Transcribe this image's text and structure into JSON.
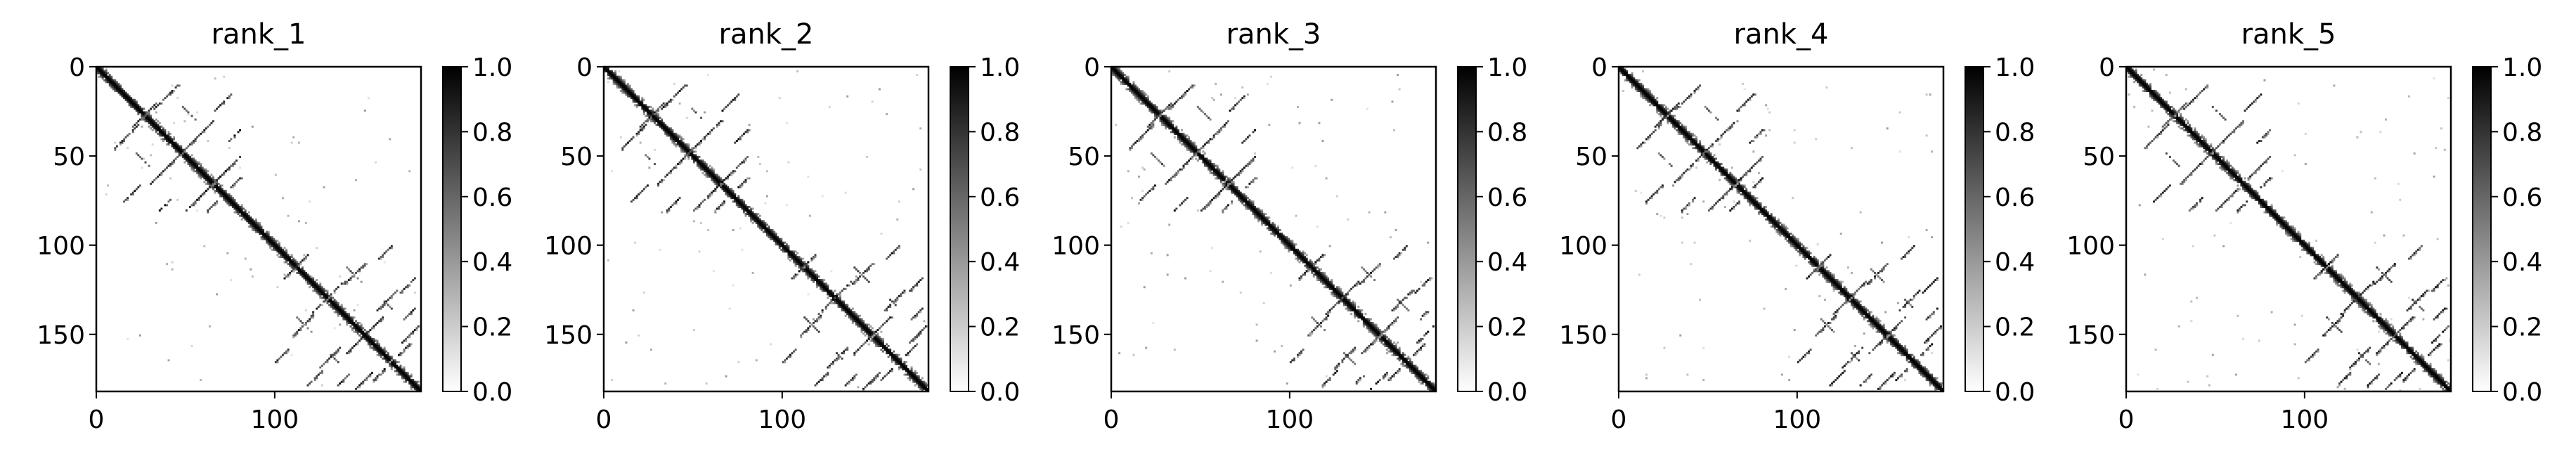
{
  "figure": {
    "panel_count": 5,
    "colormap": "gray_r",
    "colors": {
      "background": "#ffffff",
      "axes": "#000000",
      "low": "#ffffff",
      "high": "#000000"
    }
  },
  "chart_data": [
    {
      "type": "heatmap",
      "title": "rank_1",
      "matrix_size": 182,
      "xlim": [
        0,
        182
      ],
      "ylim": [
        182,
        0
      ],
      "xticks": [
        0,
        100
      ],
      "yticks": [
        0,
        50,
        100,
        150
      ],
      "colorbar": {
        "range": [
          0.0,
          1.0
        ],
        "ticks": [
          "0.0",
          "0.2",
          "0.4",
          "0.6",
          "0.8",
          "1.0"
        ]
      },
      "xlabel": "",
      "ylabel": "",
      "grid": false
    },
    {
      "type": "heatmap",
      "title": "rank_2",
      "matrix_size": 182,
      "xlim": [
        0,
        182
      ],
      "ylim": [
        182,
        0
      ],
      "xticks": [
        0,
        100
      ],
      "yticks": [
        0,
        50,
        100,
        150
      ],
      "colorbar": {
        "range": [
          0.0,
          1.0
        ],
        "ticks": [
          "0.0",
          "0.2",
          "0.4",
          "0.6",
          "0.8",
          "1.0"
        ]
      },
      "xlabel": "",
      "ylabel": "",
      "grid": false
    },
    {
      "type": "heatmap",
      "title": "rank_3",
      "matrix_size": 182,
      "xlim": [
        0,
        182
      ],
      "ylim": [
        182,
        0
      ],
      "xticks": [
        0,
        100
      ],
      "yticks": [
        0,
        50,
        100,
        150
      ],
      "colorbar": {
        "range": [
          0.0,
          1.0
        ],
        "ticks": [
          "0.0",
          "0.2",
          "0.4",
          "0.6",
          "0.8",
          "1.0"
        ]
      },
      "xlabel": "",
      "ylabel": "",
      "grid": false
    },
    {
      "type": "heatmap",
      "title": "rank_4",
      "matrix_size": 182,
      "xlim": [
        0,
        182
      ],
      "ylim": [
        182,
        0
      ],
      "xticks": [
        0,
        100
      ],
      "yticks": [
        0,
        50,
        100,
        150
      ],
      "colorbar": {
        "range": [
          0.0,
          1.0
        ],
        "ticks": [
          "0.0",
          "0.2",
          "0.4",
          "0.6",
          "0.8",
          "1.0"
        ]
      },
      "xlabel": "",
      "ylabel": "",
      "grid": false
    },
    {
      "type": "heatmap",
      "title": "rank_5",
      "matrix_size": 182,
      "xlim": [
        0,
        182
      ],
      "ylim": [
        182,
        0
      ],
      "xticks": [
        0,
        100
      ],
      "yticks": [
        0,
        50,
        100,
        150
      ],
      "colorbar": {
        "range": [
          0.0,
          1.0
        ],
        "ticks": [
          "0.0",
          "0.2",
          "0.4",
          "0.6",
          "0.8",
          "1.0"
        ]
      },
      "xlabel": "",
      "ylabel": "",
      "grid": false
    }
  ]
}
